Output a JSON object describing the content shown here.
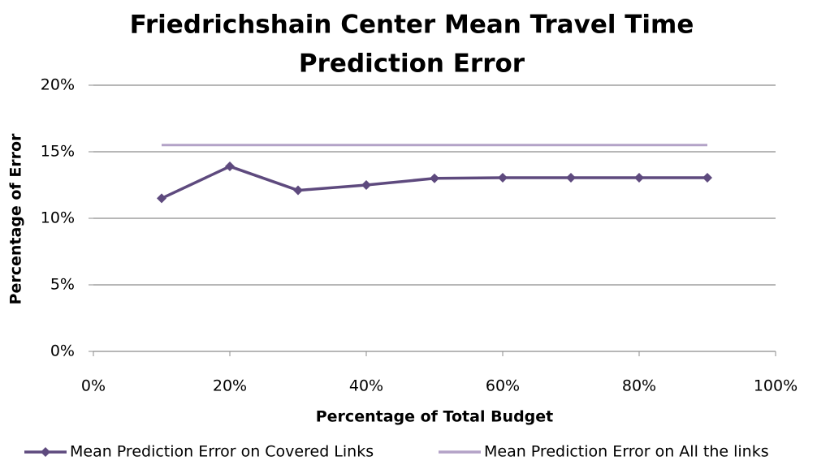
{
  "chart_data": {
    "type": "line",
    "title": [
      "Friedrichshain Center Mean Travel Time",
      "Prediction Error"
    ],
    "xlabel": "Percentage of Total Budget",
    "ylabel": "Percentage of Error",
    "x": [
      10,
      20,
      30,
      40,
      50,
      60,
      70,
      80,
      90
    ],
    "series": [
      {
        "name": "Mean Prediction Error on Covered Links",
        "color": "#5e4a7e",
        "marker": "diamond",
        "values": [
          11.5,
          13.9,
          12.1,
          12.5,
          13.0,
          13.05,
          13.05,
          13.05,
          13.05
        ]
      },
      {
        "name": "Mean Prediction Error on All the links",
        "color": "#b3a2c7",
        "marker": "none",
        "values": [
          15.5,
          15.5,
          15.5,
          15.5,
          15.5,
          15.5,
          15.5,
          15.5,
          15.5
        ]
      }
    ],
    "xlim": [
      0,
      100
    ],
    "xticks": [
      {
        "value": 0,
        "label": "0%"
      },
      {
        "value": 20,
        "label": "20%"
      },
      {
        "value": 40,
        "label": "40%"
      },
      {
        "value": 60,
        "label": "60%"
      },
      {
        "value": 80,
        "label": "80%"
      },
      {
        "value": 100,
        "label": "100%"
      }
    ],
    "ylim": [
      0,
      20
    ],
    "yticks": [
      {
        "value": 0,
        "label": "0%"
      },
      {
        "value": 5,
        "label": "5%"
      },
      {
        "value": 10,
        "label": "10%"
      },
      {
        "value": 15,
        "label": "15%"
      },
      {
        "value": 20,
        "label": "20%"
      }
    ],
    "grid": true,
    "legend": "bottom"
  }
}
